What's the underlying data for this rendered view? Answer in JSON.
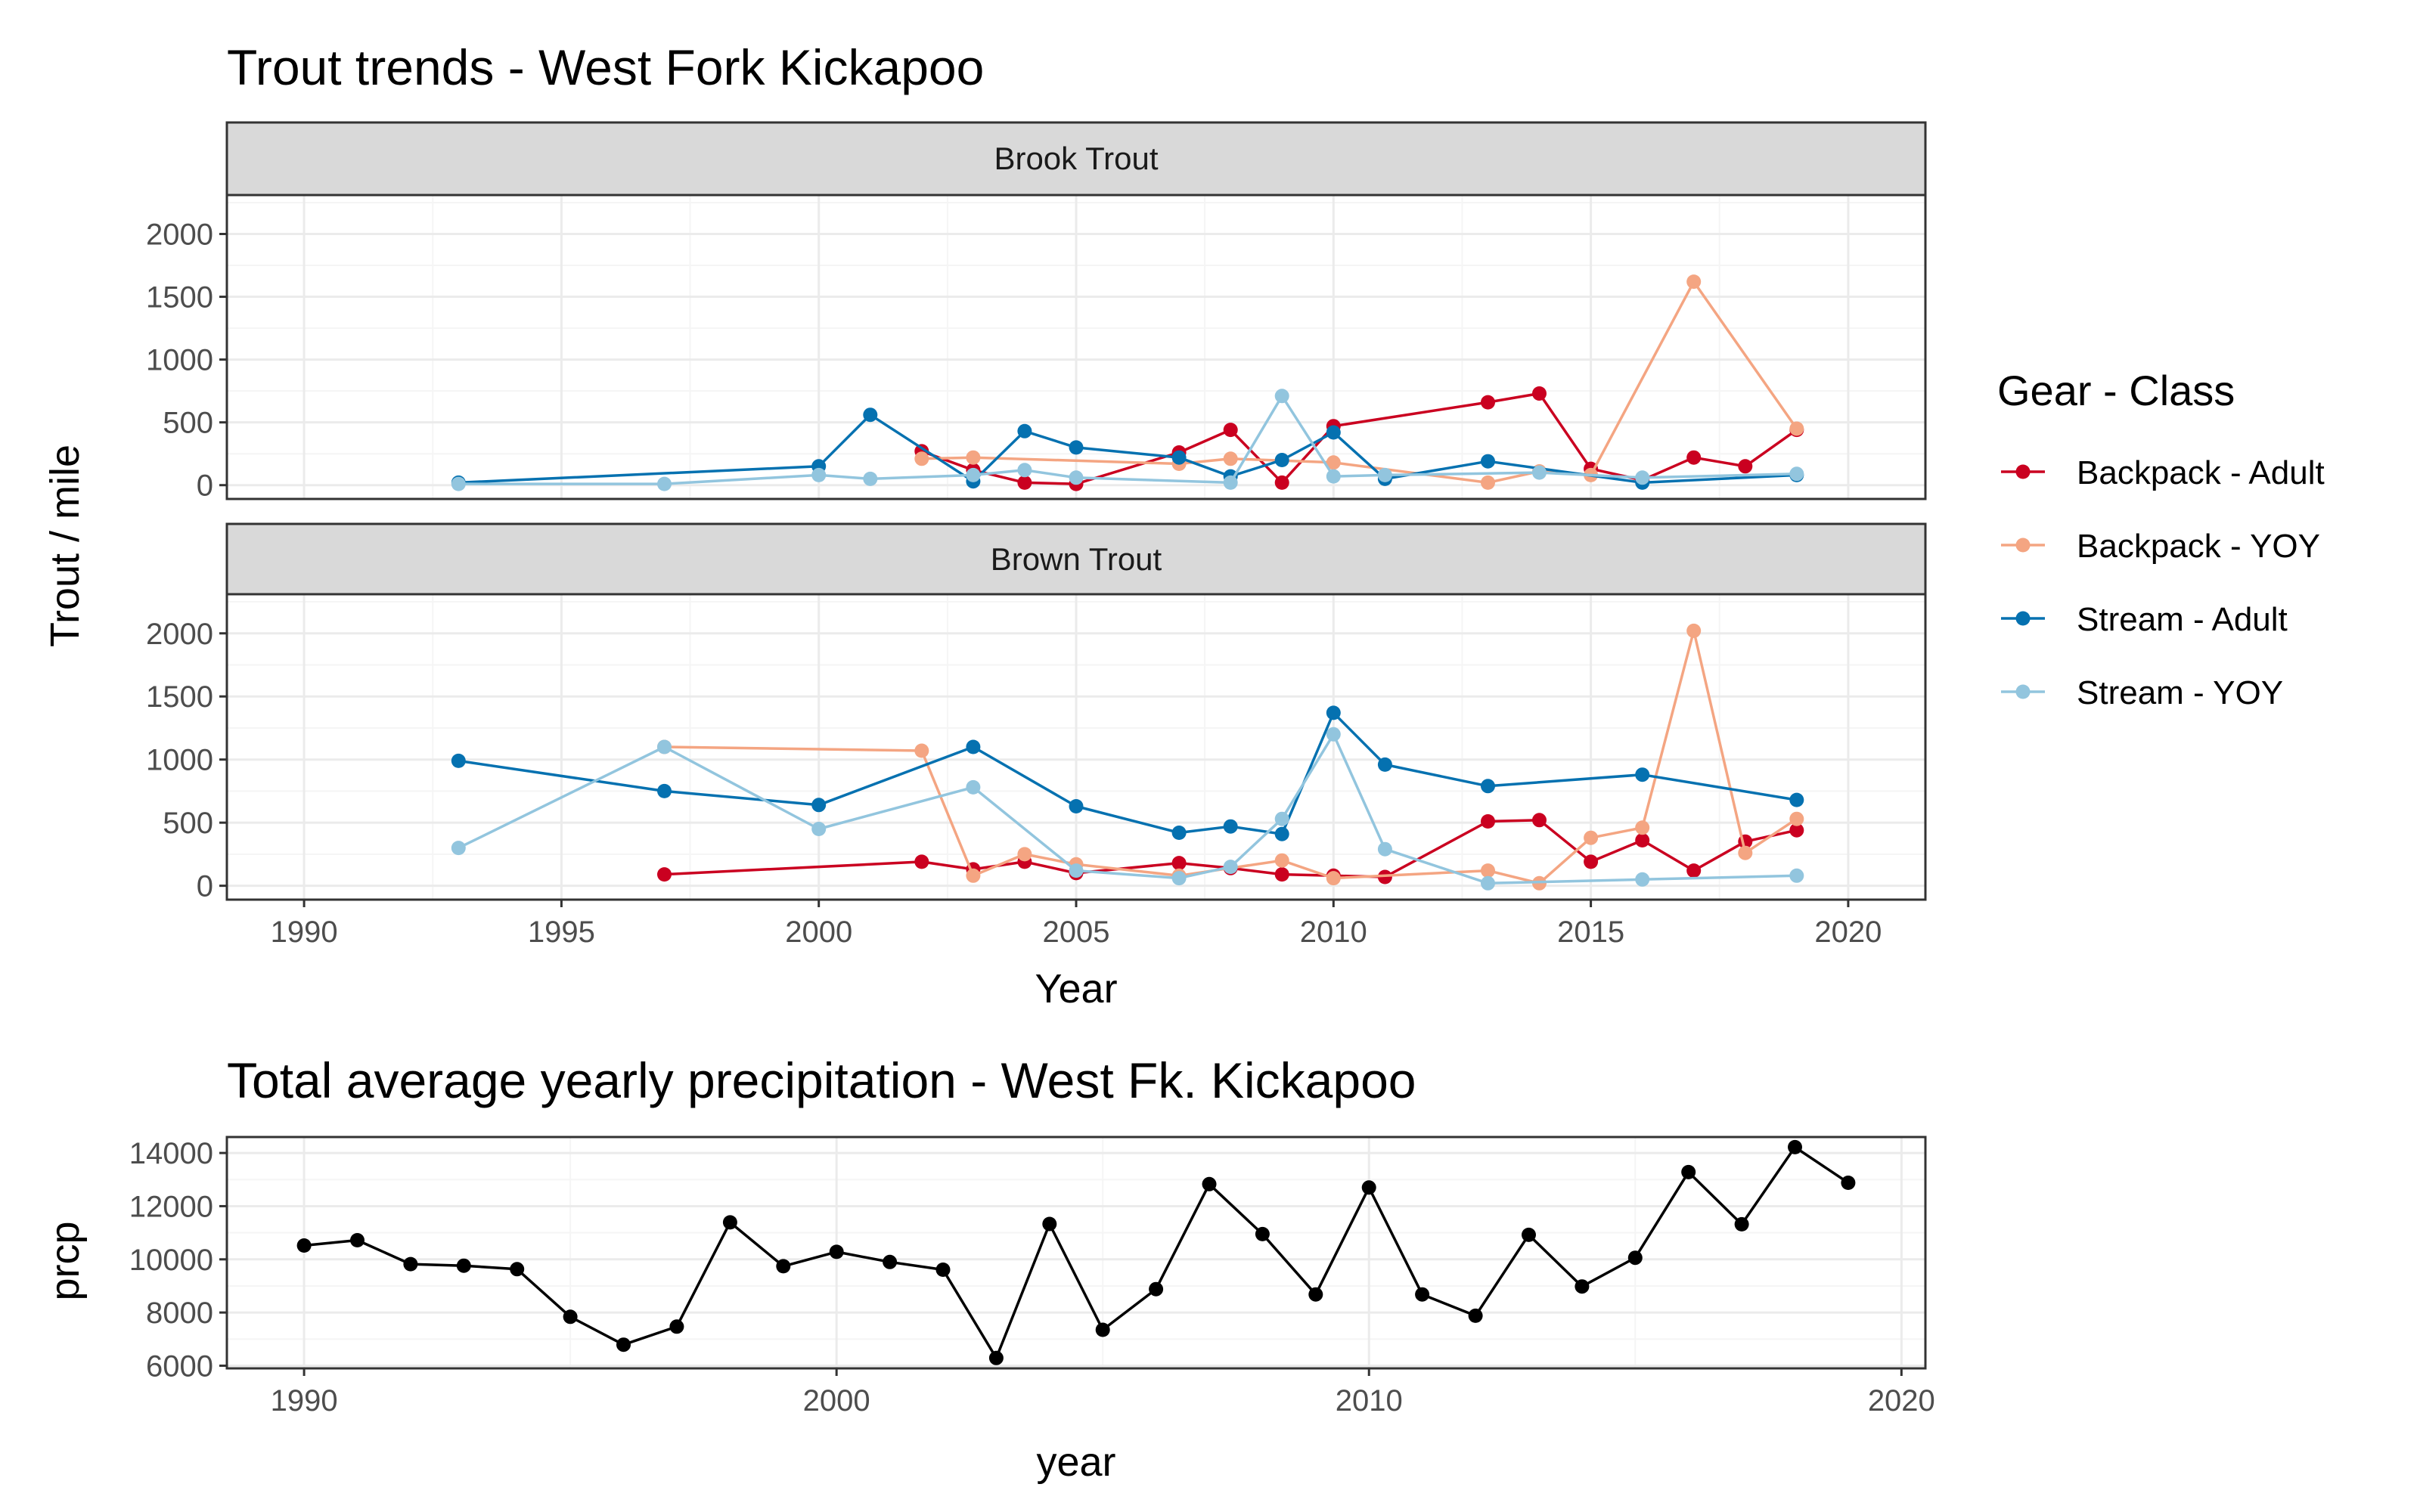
{
  "colors": {
    "backpack_adult": "#CA0020",
    "backpack_yoy": "#F4A582",
    "stream_adult": "#0571B0",
    "stream_yoy": "#92C5DE",
    "precip": "#000000",
    "strip_fill": "#D9D9D9",
    "grid_major": "#EBEBEB",
    "grid_minor": "#F5F5F5",
    "panel_border": "#333333"
  },
  "chart_data": [
    {
      "type": "line",
      "title": "Trout trends - West Fork Kickapoo",
      "xlabel": "Year",
      "ylabel": "Trout / mile",
      "xlim": [
        1988.5,
        2021.5
      ],
      "ylim": [
        -110,
        2310
      ],
      "xticks": [
        1990,
        1995,
        2000,
        2005,
        2010,
        2015,
        2020
      ],
      "yticks": [
        0,
        500,
        1000,
        1500,
        2000
      ],
      "grid": true,
      "markers": true,
      "legend": {
        "title": "Gear - Class",
        "position": "right",
        "entries": [
          "Backpack - Adult",
          "Backpack - YOY",
          "Stream - Adult",
          "Stream - YOY"
        ]
      },
      "facets": [
        {
          "label": "Brook Trout",
          "series": [
            {
              "name": "Backpack - Adult",
              "color_key": "backpack_adult",
              "x": [
                2002,
                2003,
                2004,
                2005,
                2007,
                2008,
                2009,
                2010,
                2013,
                2014,
                2015,
                2016,
                2017,
                2018,
                2019
              ],
              "y": [
                270,
                120,
                20,
                10,
                260,
                440,
                20,
                470,
                660,
                730,
                130,
                40,
                220,
                150,
                440
              ]
            },
            {
              "name": "Backpack - YOY",
              "color_key": "backpack_yoy",
              "x": [
                2002,
                2003,
                2007,
                2008,
                2010,
                2013,
                2014,
                2015,
                2017,
                2019
              ],
              "y": [
                210,
                220,
                170,
                210,
                180,
                20,
                110,
                80,
                1620,
                450
              ]
            },
            {
              "name": "Stream - Adult",
              "color_key": "stream_adult",
              "x": [
                1993,
                2000,
                2001,
                2003,
                2004,
                2005,
                2007,
                2008,
                2009,
                2010,
                2011,
                2013,
                2016,
                2019
              ],
              "y": [
                20,
                150,
                560,
                30,
                430,
                300,
                220,
                70,
                200,
                420,
                50,
                190,
                20,
                80
              ]
            },
            {
              "name": "Stream - YOY",
              "color_key": "stream_yoy",
              "x": [
                1993,
                1997,
                2000,
                2001,
                2003,
                2004,
                2005,
                2008,
                2009,
                2010,
                2011,
                2014,
                2016,
                2019
              ],
              "y": [
                10,
                10,
                80,
                50,
                80,
                120,
                60,
                20,
                710,
                70,
                80,
                100,
                60,
                90
              ]
            }
          ]
        },
        {
          "label": "Brown Trout",
          "series": [
            {
              "name": "Backpack - Adult",
              "color_key": "backpack_adult",
              "x": [
                1997,
                2002,
                2003,
                2004,
                2005,
                2007,
                2008,
                2009,
                2010,
                2011,
                2013,
                2014,
                2015,
                2016,
                2017,
                2018,
                2019
              ],
              "y": [
                90,
                190,
                130,
                190,
                100,
                180,
                140,
                90,
                80,
                70,
                510,
                520,
                190,
                360,
                120,
                350,
                440
              ]
            },
            {
              "name": "Backpack - YOY",
              "color_key": "backpack_yoy",
              "x": [
                1997,
                2002,
                2003,
                2004,
                2005,
                2007,
                2009,
                2010,
                2013,
                2014,
                2015,
                2016,
                2017,
                2018,
                2019
              ],
              "y": [
                1100,
                1070,
                80,
                250,
                170,
                80,
                200,
                60,
                120,
                20,
                380,
                460,
                2020,
                260,
                530
              ]
            },
            {
              "name": "Stream - Adult",
              "color_key": "stream_adult",
              "x": [
                1993,
                1997,
                2000,
                2003,
                2005,
                2007,
                2008,
                2009,
                2010,
                2011,
                2013,
                2016,
                2019
              ],
              "y": [
                990,
                750,
                640,
                1100,
                630,
                420,
                470,
                410,
                1370,
                960,
                790,
                880,
                680
              ]
            },
            {
              "name": "Stream - YOY",
              "color_key": "stream_yoy",
              "x": [
                1993,
                1997,
                2000,
                2003,
                2005,
                2007,
                2008,
                2009,
                2010,
                2011,
                2013,
                2016,
                2019
              ],
              "y": [
                300,
                1100,
                450,
                780,
                120,
                60,
                150,
                530,
                1200,
                290,
                20,
                50,
                80
              ]
            }
          ]
        }
      ]
    },
    {
      "type": "line",
      "title": "Total average yearly precipitation - West Fk. Kickapoo",
      "xlabel": "year",
      "ylabel": "prcp",
      "xlim": [
        1988.55,
        2020.45
      ],
      "ylim": [
        5900,
        14600
      ],
      "xticks": [
        1990,
        2000,
        2010,
        2020
      ],
      "yticks": [
        6000,
        8000,
        10000,
        12000,
        14000
      ],
      "grid": true,
      "markers": true,
      "series": [
        {
          "name": "",
          "color_key": "precip",
          "x": [
            1990,
            1991,
            1992,
            1993,
            1994,
            1995,
            1996,
            1997,
            1998,
            1999,
            2000,
            2001,
            2002,
            2003,
            2004,
            2005,
            2006,
            2007,
            2008,
            2009,
            2010,
            2011,
            2012,
            2013,
            2014,
            2015,
            2016,
            2017,
            2018,
            2019
          ],
          "y": [
            10520,
            10720,
            9820,
            9760,
            9630,
            7840,
            6790,
            7470,
            11390,
            9740,
            10280,
            9900,
            9610,
            6290,
            11330,
            7350,
            8880,
            12830,
            10950,
            8680,
            12700,
            8680,
            7880,
            10920,
            8980,
            10060,
            13280,
            11320,
            14220,
            12880
          ]
        }
      ]
    }
  ]
}
